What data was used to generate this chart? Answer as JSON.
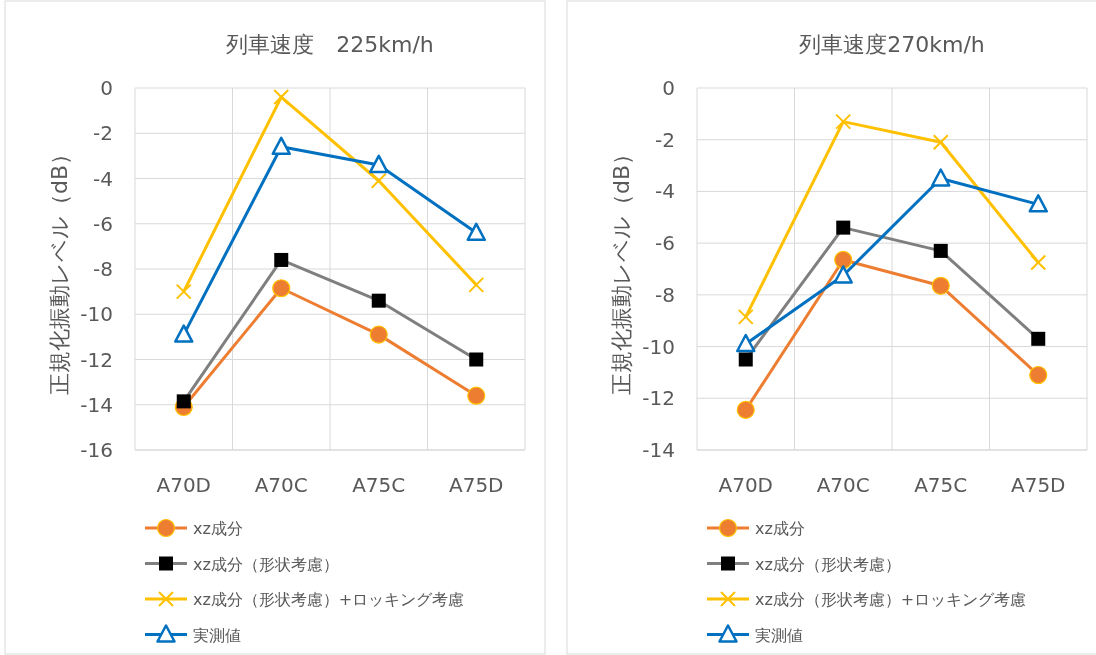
{
  "chart_data": [
    {
      "type": "line",
      "title": "列車速度　225km/h",
      "ylabel": "正規化振動レベル（dB）",
      "categories": [
        "A70D",
        "A70C",
        "A75C",
        "A75D"
      ],
      "ylim": [
        -16,
        0
      ],
      "yticks": [
        -16,
        -14,
        -12,
        -10,
        -8,
        -6,
        -4,
        -2,
        0
      ],
      "grid": true,
      "legend": "bottom",
      "series": [
        {
          "name": "xz成分",
          "color": "#ed7d31",
          "marker": "circle",
          "values": [
            -14.1,
            -8.85,
            -10.9,
            -13.6
          ]
        },
        {
          "name": "xz成分（形状考慮）",
          "color": "#7f7f7f",
          "marker": "square",
          "values": [
            -13.85,
            -7.6,
            -9.4,
            -12.0
          ]
        },
        {
          "name": "xz成分（形状考慮）+ロッキング考慮",
          "color": "#ffc000",
          "marker": "cross",
          "values": [
            -9.0,
            -0.4,
            -4.1,
            -8.7
          ]
        },
        {
          "name": "実測値",
          "color": "#0070c0",
          "marker": "triangle",
          "values": [
            -10.9,
            -2.6,
            -3.4,
            -6.4
          ]
        }
      ]
    },
    {
      "type": "line",
      "title": "列車速度270km/h",
      "ylabel": "正規化振動レベル（dB）",
      "categories": [
        "A70D",
        "A70C",
        "A75C",
        "A75D"
      ],
      "ylim": [
        -14,
        0
      ],
      "yticks": [
        -14,
        -12,
        -10,
        -8,
        -6,
        -4,
        -2,
        0
      ],
      "grid": true,
      "legend": "bottom",
      "series": [
        {
          "name": "xz成分",
          "color": "#ed7d31",
          "marker": "circle",
          "values": [
            -12.45,
            -6.65,
            -7.65,
            -11.1
          ]
        },
        {
          "name": "xz成分（形状考慮）",
          "color": "#7f7f7f",
          "marker": "square",
          "values": [
            -10.5,
            -5.4,
            -6.3,
            -9.7
          ]
        },
        {
          "name": "xz成分（形状考慮）+ロッキング考慮",
          "color": "#ffc000",
          "marker": "cross",
          "values": [
            -8.85,
            -1.3,
            -2.1,
            -6.75
          ]
        },
        {
          "name": "実測値",
          "color": "#0070c0",
          "marker": "triangle",
          "values": [
            -9.9,
            -7.25,
            -3.5,
            -4.5
          ]
        }
      ]
    }
  ]
}
